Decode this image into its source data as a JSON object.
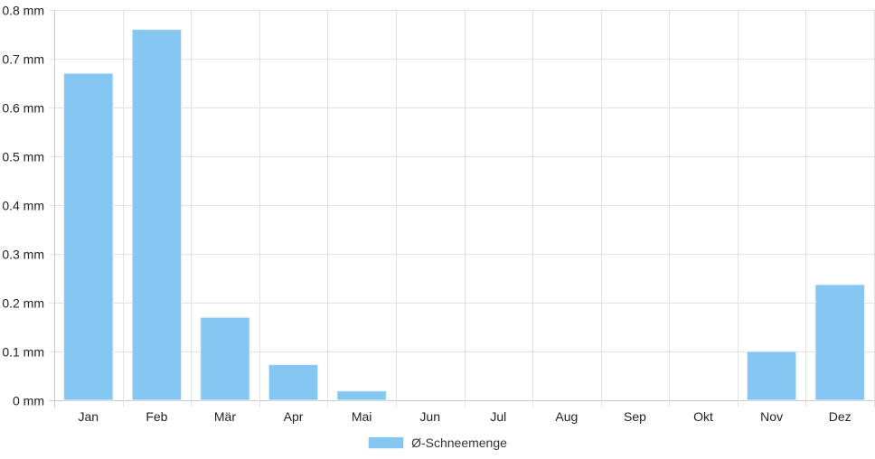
{
  "chart_data": {
    "type": "bar",
    "categories": [
      "Jan",
      "Feb",
      "Mär",
      "Apr",
      "Mai",
      "Jun",
      "Jul",
      "Aug",
      "Sep",
      "Okt",
      "Nov",
      "Dez"
    ],
    "series": [
      {
        "name": "Ø-Schneemenge",
        "values": [
          0.67,
          0.76,
          0.17,
          0.073,
          0.019,
          0,
          0,
          0,
          0,
          0,
          0.1,
          0.237
        ]
      }
    ],
    "y_ticks": [
      "0 mm",
      "0.1 mm",
      "0.2 mm",
      "0.3 mm",
      "0.4 mm",
      "0.5 mm",
      "0.6 mm",
      "0.7 mm",
      "0.8 mm"
    ],
    "ylim": [
      0,
      0.8
    ],
    "y_unit": "mm",
    "grid": true,
    "legend_position": "bottom-center",
    "colors": {
      "bar_fill": "#85c6f2",
      "bar_stroke": "#e6f2fb",
      "grid": "#e2e2e2"
    }
  }
}
